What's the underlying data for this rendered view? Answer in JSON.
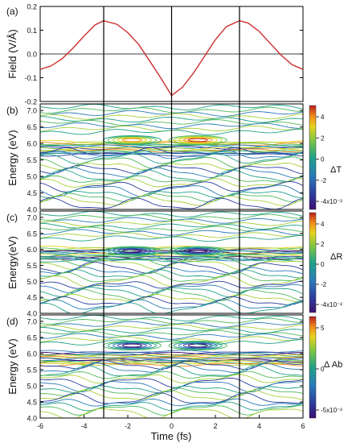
{
  "figure": {
    "xlabel": "Time (fs)",
    "xlim": [
      -6,
      6
    ],
    "xticks": [
      "-6",
      "-4",
      "-2",
      "0",
      "2",
      "4",
      "6"
    ],
    "marker_times": [
      -3.1,
      0,
      3.1
    ]
  },
  "chart_data": [
    {
      "type": "line",
      "panel": "(a)",
      "ylabel": "Field (V/Å)",
      "ylim": [
        -0.2,
        0.2
      ],
      "yticks": [
        "0.2",
        "0.1",
        "0.0",
        "-0.1",
        "-0.2"
      ],
      "series": [
        {
          "color": "#cc2f2f",
          "x": [
            -6,
            -5.5,
            -5,
            -4.5,
            -4,
            -3.5,
            -3.1,
            -2.5,
            -2,
            -1.5,
            -1,
            -0.5,
            0,
            0.5,
            1,
            1.5,
            2,
            2.5,
            3.1,
            3.5,
            4,
            4.5,
            5,
            5.5,
            6
          ],
          "y": [
            -0.065,
            -0.05,
            -0.02,
            0.025,
            0.075,
            0.122,
            0.14,
            0.125,
            0.09,
            0.04,
            -0.03,
            -0.1,
            -0.175,
            -0.14,
            -0.08,
            -0.01,
            0.06,
            0.115,
            0.14,
            0.13,
            0.095,
            0.045,
            -0.005,
            -0.045,
            -0.065
          ]
        }
      ]
    },
    {
      "type": "heatmap",
      "panel": "(b)",
      "ylabel": "Energy (eV)",
      "ylim": [
        4.0,
        7.2
      ],
      "yticks": [
        "7.0",
        "6.5",
        "6.0",
        "5.5",
        "5.0",
        "4.5",
        "4.0"
      ],
      "colorbar_label": "ΔT",
      "colorbar_ticks": [
        "4",
        "2",
        "0",
        "-2",
        "-4x10⁻²"
      ],
      "colorbar_range": [
        -5,
        5
      ]
    },
    {
      "type": "heatmap",
      "panel": "(c)",
      "ylabel": "Energy(eV)",
      "ylim": [
        4.0,
        7.2
      ],
      "yticks": [
        "7.0",
        "6.5",
        "6.0",
        "5.5",
        "5.0",
        "4.5",
        "4.0"
      ],
      "colorbar_label": "ΔR",
      "colorbar_ticks": [
        "4",
        "2",
        "0",
        "-2",
        "-4x10⁻²"
      ],
      "colorbar_range": [
        -4,
        4
      ]
    },
    {
      "type": "heatmap",
      "panel": "(d)",
      "ylabel": "Energy (eV)",
      "ylim": [
        4.0,
        7.2
      ],
      "yticks": [
        "7.0",
        "6.5",
        "6.0",
        "5.5",
        "5.0",
        "4.5",
        "4.0"
      ],
      "colorbar_label": "Δ Ab",
      "colorbar_ticks": [
        "5",
        "0",
        "-5x10⁻²"
      ],
      "colorbar_range": [
        -8,
        8
      ]
    }
  ]
}
